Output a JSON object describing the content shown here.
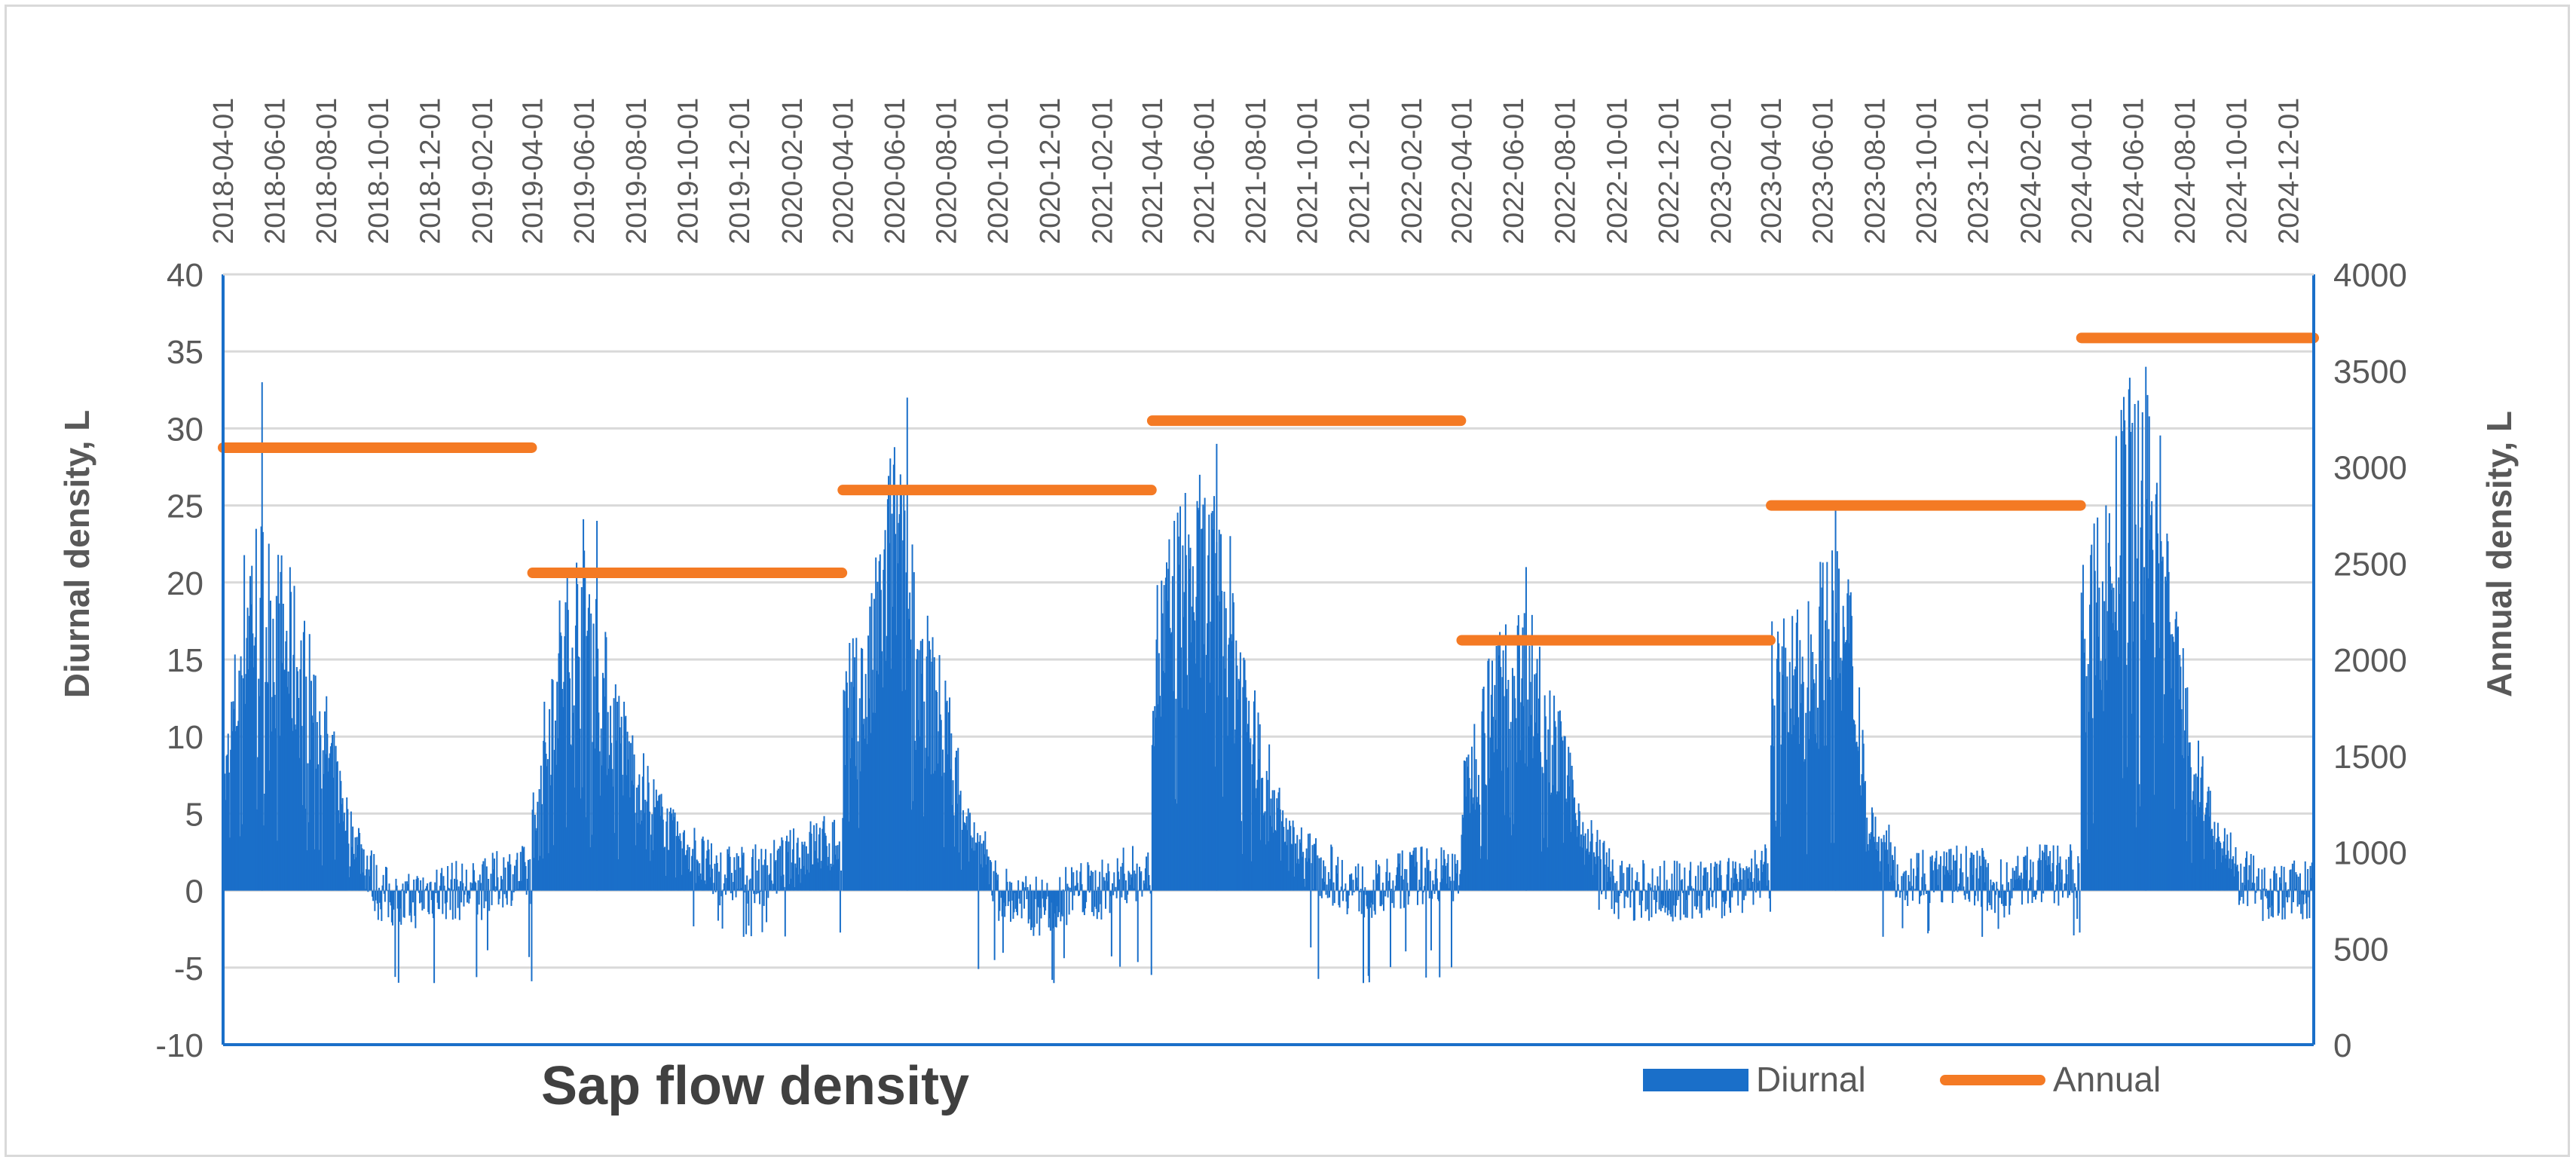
{
  "chart_data": {
    "type": "bar+line",
    "title": "Sap flow density",
    "ylabel_left": "Diurnal density, L",
    "ylabel_right": "Annual density, L",
    "xlim": [
      "2018-04-01",
      "2024-12-31"
    ],
    "ylim_left": [
      -10,
      40
    ],
    "ylim_right": [
      0,
      4000
    ],
    "yticks_left": [
      "40",
      "35",
      "30",
      "25",
      "20",
      "15",
      "10",
      "5",
      "0",
      "-5",
      "-10"
    ],
    "yticks_right": [
      "4000",
      "3500",
      "3000",
      "2500",
      "2000",
      "1500",
      "1000",
      "500",
      "0"
    ],
    "xticks": [
      "2018-04-01",
      "2018-06-01",
      "2018-08-01",
      "2018-10-01",
      "2018-12-01",
      "2019-02-01",
      "2019-04-01",
      "2019-06-01",
      "2019-08-01",
      "2019-10-01",
      "2019-12-01",
      "2020-02-01",
      "2020-04-01",
      "2020-06-01",
      "2020-08-01",
      "2020-10-01",
      "2020-12-01",
      "2021-02-01",
      "2021-04-01",
      "2021-06-01",
      "2021-08-01",
      "2021-10-01",
      "2021-12-01",
      "2022-02-01",
      "2022-04-01",
      "2022-06-01",
      "2022-08-01",
      "2022-10-01",
      "2022-12-01",
      "2023-02-01",
      "2023-04-01",
      "2023-06-01",
      "2023-08-01",
      "2023-10-01",
      "2023-12-01",
      "2024-02-01",
      "2024-04-01",
      "2024-06-01",
      "2024-08-01",
      "2024-10-01",
      "2024-12-01"
    ],
    "grid": true,
    "legend_position": "bottom-right",
    "colors": {
      "diurnal": "#1a6fc9",
      "annual": "#f47a24",
      "grid": "#d9d9d9",
      "axis": "#1a6fc9"
    },
    "series": [
      {
        "name": "Diurnal",
        "type": "bar",
        "note_resolution": "daily values approximated from monthly envelope",
        "years": [
          {
            "start": "2018-04-01",
            "monthly_mean": [
              6,
              20,
              18,
              15,
              10,
              4,
              0,
              -1,
              0,
              0,
              0,
              1
            ]
          },
          {
            "start": "2019-04-01",
            "monthly_mean": [
              5,
              15,
              19,
              12,
              8,
              5,
              3,
              1,
              1,
              1,
              2,
              3
            ]
          },
          {
            "start": "2020-04-01",
            "monthly_mean": [
              12,
              14,
              24,
              15,
              11,
              4,
              0,
              -1,
              -1,
              0,
              0,
              1
            ]
          },
          {
            "start": "2021-04-01",
            "monthly_mean": [
              15,
              20,
              21,
              18,
              10,
              5,
              2,
              1,
              0,
              0,
              1,
              1
            ]
          },
          {
            "start": "2022-04-01",
            "monthly_mean": [
              6,
              12,
              15,
              14,
              8,
              3,
              0,
              0,
              0,
              0,
              0,
              1
            ]
          },
          {
            "start": "2023-04-01",
            "monthly_mean": [
              14,
              14,
              17,
              17,
              4,
              1,
              1,
              1,
              1,
              0,
              1,
              1
            ]
          },
          {
            "start": "2024-04-01",
            "monthly_mean": [
              16,
              21,
              27,
              24,
              12,
              5,
              1,
              0,
              0
            ]
          }
        ],
        "peaks": [
          33,
          24,
          32,
          29,
          21,
          25,
          34
        ],
        "minima": [
          -6,
          -3,
          -6,
          -6,
          -2,
          -3,
          0
        ]
      },
      {
        "name": "Annual",
        "type": "line-segments",
        "segments": [
          {
            "start": "2018-04-01",
            "end": "2019-03-31",
            "value": 3100
          },
          {
            "start": "2019-04-01",
            "end": "2020-03-31",
            "value": 2450
          },
          {
            "start": "2020-04-01",
            "end": "2021-03-31",
            "value": 2880
          },
          {
            "start": "2021-04-01",
            "end": "2022-03-31",
            "value": 3240
          },
          {
            "start": "2022-04-01",
            "end": "2023-03-31",
            "value": 2100
          },
          {
            "start": "2023-04-01",
            "end": "2024-03-31",
            "value": 2800
          },
          {
            "start": "2024-04-01",
            "end": "2024-12-31",
            "value": 3670
          }
        ]
      }
    ]
  },
  "legend": {
    "diurnal_label": "Diurnal",
    "annual_label": "Annual"
  }
}
